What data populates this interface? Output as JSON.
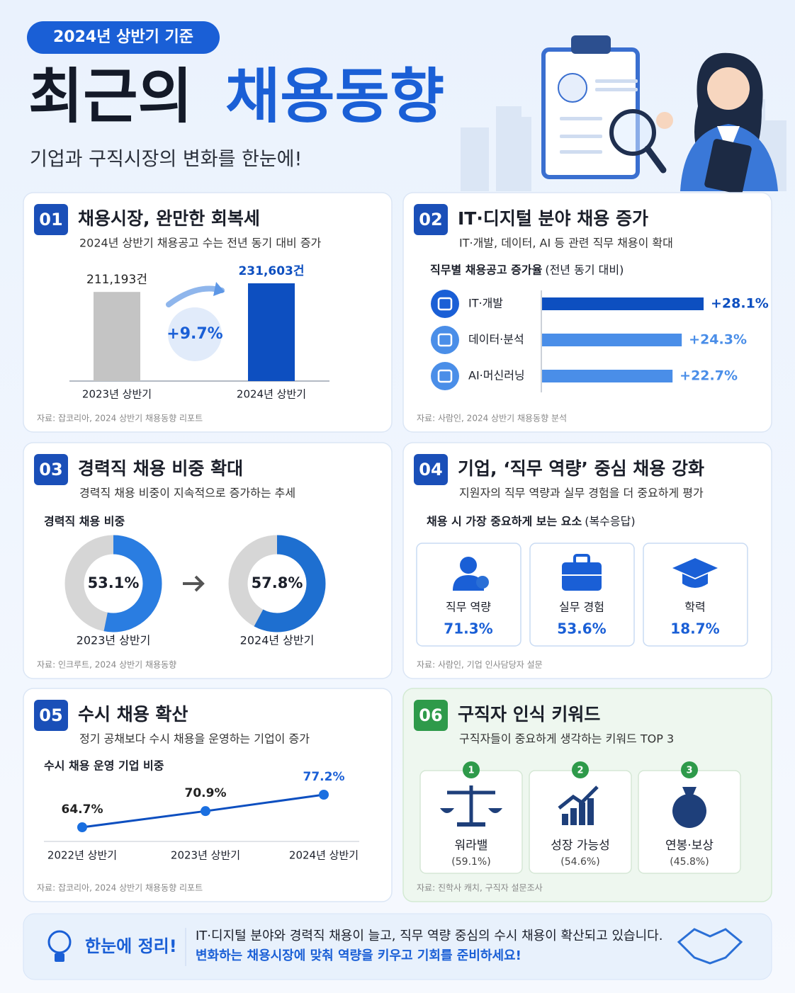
{
  "header": {
    "badge": "2024년 상반기 기준",
    "title": [
      "최근의",
      "채용동향"
    ],
    "subtitle": "기업과 구직시장의 변화를 한눈에!"
  },
  "sections": [
    {
      "number": "01",
      "title": "채용시장, 완만한 회복세",
      "subtitle": "2024년 상반기 채용공고 수는 전년 동기 대비 증가",
      "chart": {
        "type": "bar",
        "categories": [
          "2023년 상반기",
          "2024년 상반기"
        ],
        "values": [
          211193,
          231603
        ],
        "value_labels": [
          "211,193건",
          "231,603건"
        ],
        "colors": [
          "#c4c4c4",
          "#0d4fc0"
        ],
        "change_label": "+9.7%"
      },
      "source": "자료: 잡코리아, 2024 상반기 채용동향 리포트"
    },
    {
      "number": "02",
      "title": "IT·디지털 분야 채용 증가",
      "subtitle": "IT·개발, 데이터, AI 등 관련 직무 채용이 확대",
      "chart": {
        "type": "hbar",
        "title": "직무별 채용공고 증가율",
        "note": "(전년 동기 대비)",
        "categories": [
          "IT·개발",
          "데이터·분석",
          "AI·머신러닝"
        ],
        "values": [
          28.1,
          24.3,
          22.7
        ],
        "value_labels": [
          "+28.1%",
          "+24.3%",
          "+22.7%"
        ],
        "colors": [
          "#0d4fc0",
          "#4a8ee8",
          "#4a8ee8"
        ]
      },
      "source": "자료: 사람인, 2024 상반기 채용동향 분석"
    },
    {
      "number": "03",
      "title": "경력직 채용 비중 확대",
      "subtitle": "경력직 채용 비중이 지속적으로 증가하는 추세",
      "chart": {
        "type": "donut",
        "title": "경력직 채용 비중",
        "categories": [
          "2023년 상반기",
          "2024년 상반기"
        ],
        "values": [
          53.1,
          57.8
        ],
        "value_labels": [
          "53.1%",
          "57.8%"
        ],
        "colors": [
          "#2a7de1",
          "#1e6fd0"
        ]
      },
      "source": "자료: 인크루트, 2024 상반기 채용동향"
    },
    {
      "number": "04",
      "title": "기업, ‘직무 역량’ 중심 채용 강화",
      "subtitle": "지원자의 직무 역량과 실무 경험을 더 중요하게 평가",
      "chart": {
        "type": "cards",
        "title": "채용 시 가장 중요하게 보는 요소",
        "note": "(복수응답)",
        "items": [
          {
            "label": "직무 역량",
            "value": "71.3%"
          },
          {
            "label": "실무 경험",
            "value": "53.6%"
          },
          {
            "label": "학력",
            "value": "18.7%"
          }
        ]
      },
      "source": "자료: 사람인, 기업 인사담당자 설문"
    },
    {
      "number": "05",
      "title": "수시 채용 확산",
      "subtitle": "정기 공채보다 수시 채용을 운영하는 기업이 증가",
      "chart": {
        "type": "line",
        "title": "수시 채용 운영 기업 비중",
        "categories": [
          "2022년 상반기",
          "2023년 상반기",
          "2024년 상반기"
        ],
        "values": [
          64.7,
          70.9,
          77.2
        ],
        "value_labels": [
          "64.7%",
          "70.9%",
          "77.2%"
        ],
        "color": "#0d4fc0"
      },
      "source": "자료: 잡코리아, 2024 상반기 채용동향 리포트"
    },
    {
      "number": "06",
      "title": "구직자 인식 키워드",
      "subtitle": "구직자들이 중요하게 생각하는 키워드 TOP 3",
      "chart": {
        "type": "ranking",
        "items": [
          {
            "rank": "1",
            "label": "워라밸",
            "share": "(59.1%)"
          },
          {
            "rank": "2",
            "label": "성장 가능성",
            "share": "(54.6%)"
          },
          {
            "rank": "3",
            "label": "연봉·보상",
            "share": "(45.8%)"
          }
        ]
      },
      "source": "자료: 진학사 캐치, 구직자 설문조사"
    }
  ],
  "summary": {
    "label": "한눈에 정리!",
    "lines": [
      "IT·디지털 분야와 경력직 채용이 늘고, 직무 역량 중심의 수시 채용이 확산되고 있습니다.",
      "변화하는 채용시장에 맞춰 역량을 키우고 기회를 준비하세요!"
    ]
  }
}
